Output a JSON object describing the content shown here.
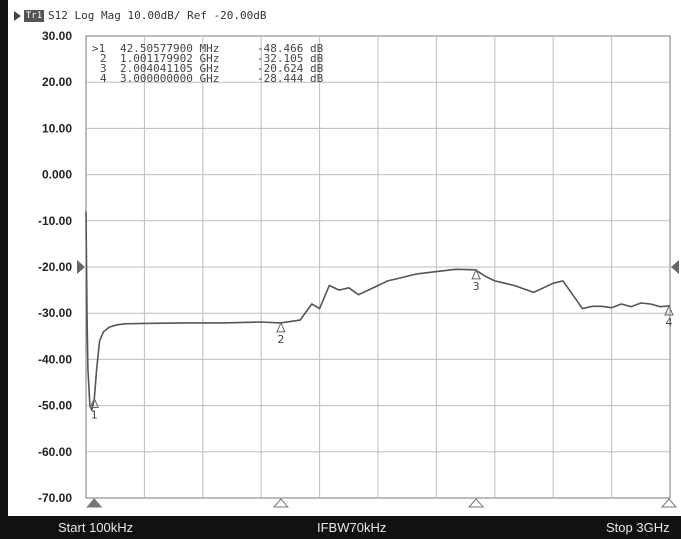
{
  "titlebar": {
    "trace_tag": "Tr1",
    "text": "S12 Log Mag 10.00dB/ Ref -20.00dB"
  },
  "markers": [
    {
      "label": ">1",
      "freq": "42.50577900 MHz",
      "value": "-48.466 dB",
      "id": "1"
    },
    {
      "label": "2",
      "freq": "1.001179902 GHz",
      "value": "-32.105 dB",
      "id": "2"
    },
    {
      "label": "3",
      "freq": "2.004041105 GHz",
      "value": "-20.624 dB",
      "id": "3"
    },
    {
      "label": "4",
      "freq": "3.000000000 GHz",
      "value": "-28.444 dB",
      "id": "4"
    }
  ],
  "footer": {
    "start": "Start 100kHz",
    "ifbw": "IFBW70kHz",
    "stop": "Stop 3GHz"
  },
  "chart_data": {
    "type": "line",
    "xlabel": "",
    "ylabel": "",
    "xlim": [
      0.0001,
      3.0
    ],
    "x_unit": "GHz",
    "ylim": [
      -70,
      30
    ],
    "y_ticks": [
      30,
      20,
      10,
      0,
      -10,
      -20,
      -30,
      -40,
      -50,
      -60,
      -70
    ],
    "y_tick_labels": [
      "30.00",
      "20.00",
      "10.00",
      "0.000",
      "-10.00",
      "-20.00",
      "-30.00",
      "-40.00",
      "-50.00",
      "-60.00",
      "-70.00"
    ],
    "grid": true,
    "reference_level": -20,
    "series": [
      {
        "x": [
          0.0001,
          0.005,
          0.01,
          0.02,
          0.03,
          0.0425,
          0.055,
          0.07,
          0.09,
          0.12,
          0.16,
          0.2,
          0.3,
          0.5,
          0.7,
          0.9,
          1.0,
          1.1,
          1.16,
          1.2,
          1.25,
          1.3,
          1.35,
          1.4,
          1.45,
          1.5,
          1.55,
          1.6,
          1.7,
          1.8,
          1.9,
          2.0,
          2.05,
          2.1,
          2.2,
          2.3,
          2.35,
          2.4,
          2.45,
          2.5,
          2.55,
          2.6,
          2.65,
          2.7,
          2.75,
          2.8,
          2.85,
          2.9,
          2.95,
          3.0
        ],
        "y": [
          -8,
          -30,
          -42,
          -50,
          -51,
          -48.5,
          -42,
          -36,
          -34,
          -33,
          -32.5,
          -32.3,
          -32.2,
          -32.1,
          -32.1,
          -31.9,
          -32.1,
          -31.5,
          -28,
          -29,
          -24,
          -25,
          -24.5,
          -26,
          -25,
          -24,
          -23,
          -22.5,
          -21.5,
          -21,
          -20.5,
          -20.6,
          -22,
          -23,
          -24,
          -25.5,
          -24.5,
          -23.5,
          -23,
          -26,
          -29,
          -28.5,
          -28.5,
          -28.8,
          -28,
          -28.6,
          -27.8,
          -28,
          -28.6,
          -28.4
        ]
      }
    ],
    "markers": [
      {
        "id": "1",
        "x": 0.0425,
        "y": -48.466
      },
      {
        "id": "2",
        "x": 1.00118,
        "y": -32.105
      },
      {
        "id": "3",
        "x": 2.00404,
        "y": -20.624
      },
      {
        "id": "4",
        "x": 3.0,
        "y": -28.444
      }
    ]
  }
}
